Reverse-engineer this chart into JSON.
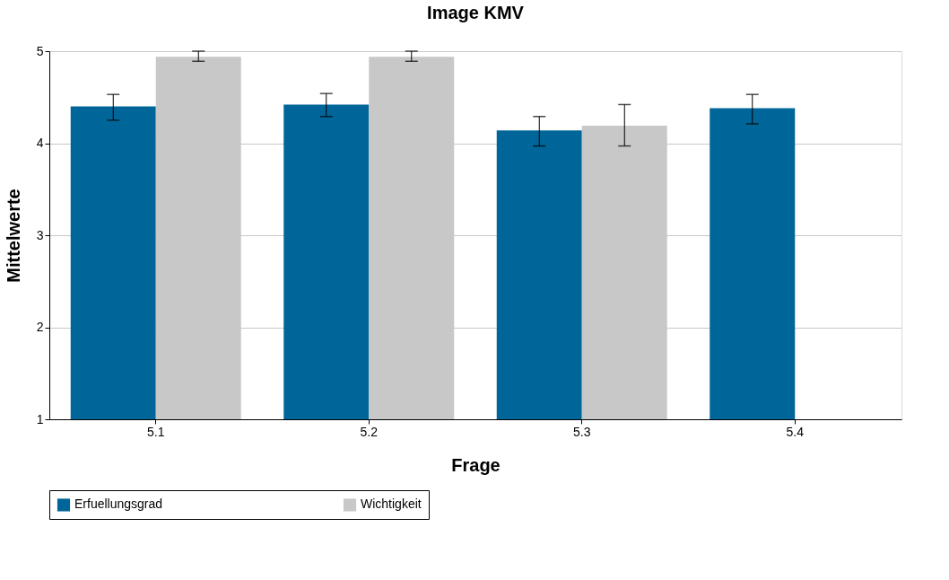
{
  "chart_data": {
    "type": "bar",
    "title": "Image KMV",
    "xlabel": "Frage",
    "ylabel": "Mittelwerte",
    "categories": [
      "5.1",
      "5.2",
      "5.3",
      "5.4"
    ],
    "series": [
      {
        "name": "Erfuellungsgrad",
        "color": "#006699",
        "values": [
          4.4,
          4.42,
          4.14,
          4.38
        ],
        "errors": [
          [
            4.25,
            4.53
          ],
          [
            4.29,
            4.54
          ],
          [
            3.97,
            4.29
          ],
          [
            4.21,
            4.53
          ]
        ]
      },
      {
        "name": "Wichtigkeit",
        "color": "#c8c8c8",
        "values": [
          4.94,
          4.94,
          4.19,
          null
        ],
        "errors": [
          [
            4.89,
            5.0
          ],
          [
            4.89,
            5.0
          ],
          [
            3.97,
            4.42
          ],
          null
        ]
      }
    ],
    "ylim": [
      1,
      5
    ],
    "yticks": [
      1,
      2,
      3,
      4,
      5
    ],
    "grid": "y",
    "legend": "bottom"
  }
}
